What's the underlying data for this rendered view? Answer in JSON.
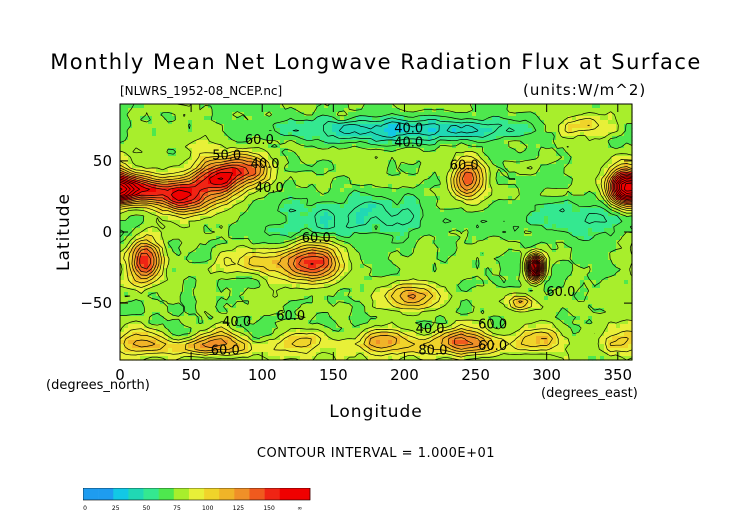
{
  "chart_data": {
    "type": "heatmap",
    "title": "Monthly Mean Net Longwave Radiation Flux at Surface",
    "subtitle_left": "[NLWRS_1952-08_NCEP.nc]",
    "subtitle_right": "(units:W/m^2)",
    "xlabel": "Longitude",
    "ylabel": "Latitude",
    "x_unit": "(degrees_east)",
    "y_unit": "(degrees_north)",
    "xlim": [
      0,
      360
    ],
    "ylim": [
      -90,
      90
    ],
    "x_ticks": [
      0,
      50,
      100,
      150,
      200,
      250,
      300,
      350
    ],
    "y_ticks": [
      -50,
      0,
      50
    ],
    "contour_interval_text": "CONTOUR INTERVAL = 1.000E+01",
    "colorbar": {
      "levels": [
        0,
        25,
        50,
        75,
        100,
        125,
        150
      ],
      "labels": [
        "0",
        "25",
        "50",
        "75",
        "100",
        "125",
        "150",
        "∞"
      ],
      "colors": [
        "#1e9cf0",
        "#12c8e6",
        "#20d8b4",
        "#34e890",
        "#4ee84e",
        "#a8ee2c",
        "#e8f038",
        "#f0d42a",
        "#f0b428",
        "#f09028",
        "#f05a1e",
        "#f02414",
        "#f00000"
      ]
    },
    "contour_labels": [
      {
        "text": "60.0",
        "lon": 98,
        "lat": 62
      },
      {
        "text": "40.0",
        "lon": 203,
        "lat": 70
      },
      {
        "text": "40.0",
        "lon": 203,
        "lat": 60
      },
      {
        "text": "50.0",
        "lon": 75,
        "lat": 51
      },
      {
        "text": "40.0",
        "lon": 102,
        "lat": 45
      },
      {
        "text": "60.0",
        "lon": 242,
        "lat": 44
      },
      {
        "text": "40.0",
        "lon": 105,
        "lat": 28
      },
      {
        "text": "60.0",
        "lon": 138,
        "lat": -7
      },
      {
        "text": "60.0",
        "lon": 310,
        "lat": -45
      },
      {
        "text": "40.0",
        "lon": 82,
        "lat": -66
      },
      {
        "text": "60.0",
        "lon": 120,
        "lat": -62
      },
      {
        "text": "40.0",
        "lon": 218,
        "lat": -71
      },
      {
        "text": "60.0",
        "lon": 262,
        "lat": -68
      },
      {
        "text": "60.0",
        "lon": 74,
        "lat": -86
      },
      {
        "text": "80.0",
        "lon": 220,
        "lat": -86
      },
      {
        "text": "60.0",
        "lon": 262,
        "lat": -83
      }
    ],
    "field_features": {
      "base_value": 52,
      "blobs": [
        {
          "lon": 10,
          "lat": 30,
          "amp": 95,
          "slon": 16,
          "slat": 7
        },
        {
          "lon": 45,
          "lat": 25,
          "amp": 85,
          "slon": 12,
          "slat": 8
        },
        {
          "lon": 70,
          "lat": 38,
          "amp": 85,
          "slon": 14,
          "slat": 10
        },
        {
          "lon": 90,
          "lat": 44,
          "amp": 45,
          "slon": 12,
          "slat": 6
        },
        {
          "lon": 18,
          "lat": -20,
          "amp": 85,
          "slon": 8,
          "slat": 10
        },
        {
          "lon": 135,
          "lat": -22,
          "amp": 80,
          "slon": 14,
          "slat": 9
        },
        {
          "lon": 245,
          "lat": 38,
          "amp": 70,
          "slon": 8,
          "slat": 9
        },
        {
          "lon": 292,
          "lat": -25,
          "amp": 140,
          "slon": 4,
          "slat": 6
        },
        {
          "lon": 205,
          "lat": -45,
          "amp": 55,
          "slon": 12,
          "slat": 6
        },
        {
          "lon": 282,
          "lat": -50,
          "amp": 45,
          "slon": 7,
          "slat": 4
        },
        {
          "lon": 355,
          "lat": 32,
          "amp": 85,
          "slon": 8,
          "slat": 10
        },
        {
          "lon": 95,
          "lat": -20,
          "amp": 35,
          "slon": 15,
          "slat": 6
        },
        {
          "lon": 325,
          "lat": 75,
          "amp": 35,
          "slon": 12,
          "slat": 6
        },
        {
          "lon": 200,
          "lat": 72,
          "amp": -40,
          "slon": 60,
          "slat": 6
        },
        {
          "lon": 160,
          "lat": 10,
          "amp": -25,
          "slon": 50,
          "slat": 12
        },
        {
          "lon": 320,
          "lat": 10,
          "amp": -20,
          "slon": 30,
          "slat": 12
        },
        {
          "lon": 230,
          "lat": -78,
          "amp": 45,
          "slon": 60,
          "slat": 6
        },
        {
          "lon": 60,
          "lat": -80,
          "amp": 40,
          "slon": 40,
          "slat": 5
        }
      ]
    }
  }
}
